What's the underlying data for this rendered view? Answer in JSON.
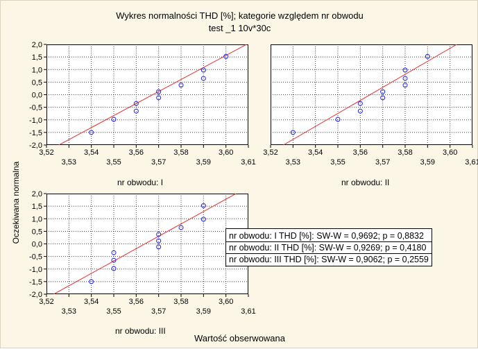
{
  "title": "Wykres normalności   THD [%]; kategorie względem nr obwodu",
  "subtitle": "test _1 10v*30c",
  "ylabel": "Oczekiwana normalna",
  "xlabel": "Wartość obserwowana",
  "colors": {
    "points": "#2020ee",
    "fit_line": "#e83030",
    "grid": "#000000",
    "background": "#fbf6e6"
  },
  "stats_box": {
    "lines": [
      "nr obwodu: I  THD [%]:  SW-W = 0,9692;  p = 0,8832",
      "nr obwodu: II  THD [%]:  SW-W = 0,9269;  p = 0,4180",
      "nr obwodu: III  THD [%]:  SW-W = 0,9062;  p = 0,2559"
    ]
  },
  "chart_data": [
    {
      "type": "scatter",
      "panel_label": "nr obwodu: I",
      "xlim": [
        3.52,
        3.61
      ],
      "ylim": [
        -2.0,
        2.0
      ],
      "xticks_upper": [
        "3,52",
        "3,54",
        "3,56",
        "3,58",
        "3,60"
      ],
      "xticks_lower": [
        "3,53",
        "3,55",
        "3,57",
        "3,59",
        "3,61"
      ],
      "yticks": [
        "2,0",
        "1,5",
        "1,0",
        "0,5",
        "0,0",
        "-0,5",
        "-1,0",
        "-1,5",
        "-2,0"
      ],
      "grid": true,
      "points": [
        {
          "x": 3.54,
          "y": -1.5
        },
        {
          "x": 3.55,
          "y": -0.98
        },
        {
          "x": 3.56,
          "y": -0.65
        },
        {
          "x": 3.56,
          "y": -0.35
        },
        {
          "x": 3.57,
          "y": -0.12
        },
        {
          "x": 3.57,
          "y": 0.12
        },
        {
          "x": 3.58,
          "y": 0.38
        },
        {
          "x": 3.59,
          "y": 0.65
        },
        {
          "x": 3.59,
          "y": 0.98
        },
        {
          "x": 3.6,
          "y": 1.52
        }
      ],
      "fit_line": [
        {
          "x": 3.5255,
          "y": -2.0
        },
        {
          "x": 3.61,
          "y": 2.04
        }
      ]
    },
    {
      "type": "scatter",
      "panel_label": "nr obwodu: II",
      "xlim": [
        3.52,
        3.61
      ],
      "ylim": [
        -2.0,
        2.0
      ],
      "xticks_upper": [
        "3,52",
        "3,54",
        "3,56",
        "3,58",
        "3,60"
      ],
      "xticks_lower": [
        "3,53",
        "3,55",
        "3,57",
        "3,59",
        "3,61"
      ],
      "yticks": [],
      "grid": true,
      "points": [
        {
          "x": 3.53,
          "y": -1.5
        },
        {
          "x": 3.55,
          "y": -0.98
        },
        {
          "x": 3.56,
          "y": -0.65
        },
        {
          "x": 3.56,
          "y": -0.35
        },
        {
          "x": 3.57,
          "y": -0.12
        },
        {
          "x": 3.57,
          "y": 0.12
        },
        {
          "x": 3.58,
          "y": 0.38
        },
        {
          "x": 3.58,
          "y": 0.65
        },
        {
          "x": 3.58,
          "y": 0.98
        },
        {
          "x": 3.59,
          "y": 1.52
        }
      ],
      "fit_line": [
        {
          "x": 3.5257,
          "y": -2.0
        },
        {
          "x": 3.603,
          "y": 2.0
        }
      ]
    },
    {
      "type": "scatter",
      "panel_label": "nr obwodu: III",
      "xlim": [
        3.52,
        3.61
      ],
      "ylim": [
        -2.0,
        2.0
      ],
      "xticks_upper": [
        "3,52",
        "3,54",
        "3,56",
        "3,58",
        "3,60"
      ],
      "xticks_lower": [
        "3,53",
        "3,55",
        "3,57",
        "3,59",
        "3,61"
      ],
      "yticks": [
        "2,0",
        "1,5",
        "1,0",
        "0,5",
        "0,0",
        "-0,5",
        "-1,0",
        "-1,5",
        "-2,0"
      ],
      "grid": true,
      "points": [
        {
          "x": 3.54,
          "y": -1.5
        },
        {
          "x": 3.55,
          "y": -0.98
        },
        {
          "x": 3.55,
          "y": -0.65
        },
        {
          "x": 3.55,
          "y": -0.35
        },
        {
          "x": 3.57,
          "y": -0.12
        },
        {
          "x": 3.57,
          "y": 0.12
        },
        {
          "x": 3.57,
          "y": 0.38
        },
        {
          "x": 3.58,
          "y": 0.65
        },
        {
          "x": 3.59,
          "y": 0.98
        },
        {
          "x": 3.59,
          "y": 1.52
        }
      ],
      "fit_line": [
        {
          "x": 3.5232,
          "y": -2.0
        },
        {
          "x": 3.6045,
          "y": 2.0
        }
      ]
    }
  ]
}
